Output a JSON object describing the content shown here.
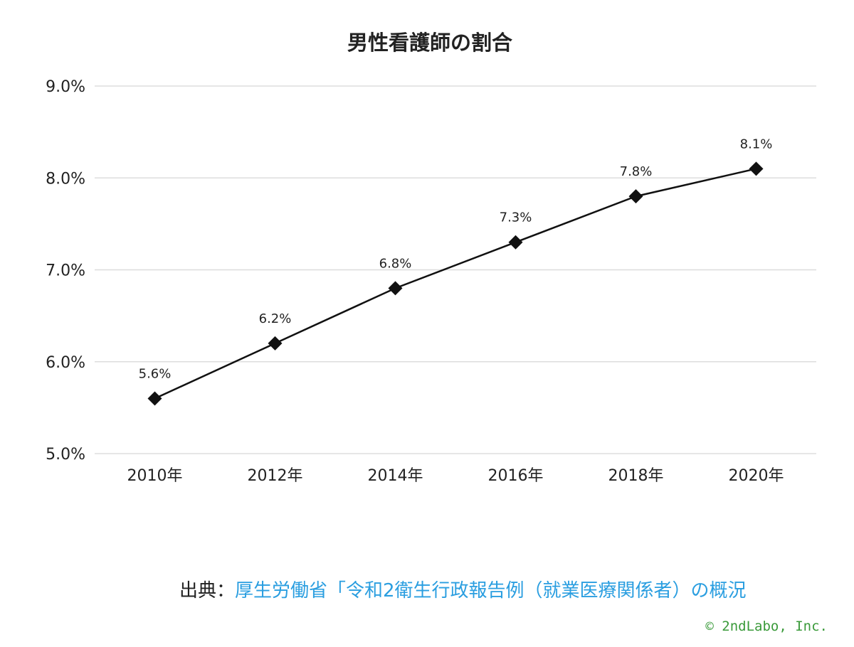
{
  "chart_data": {
    "type": "line",
    "title": "男性看護師の割合",
    "categories": [
      "2010年",
      "2012年",
      "2014年",
      "2016年",
      "2018年",
      "2020年"
    ],
    "series": [
      {
        "name": "男性看護師の割合",
        "color": "#111111",
        "values": [
          5.6,
          6.2,
          6.8,
          7.3,
          7.8,
          8.1
        ],
        "value_labels": [
          "5.6%",
          "6.2%",
          "6.8%",
          "7.3%",
          "7.8%",
          "8.1%"
        ]
      }
    ],
    "ylim": [
      5,
      9
    ],
    "yticks": [
      {
        "value": 5,
        "label": "5.0%"
      },
      {
        "value": 6,
        "label": "6.0%"
      },
      {
        "value": 7,
        "label": "7.0%"
      },
      {
        "value": 8,
        "label": "8.0%"
      },
      {
        "value": 9,
        "label": "9.0%"
      }
    ],
    "grid": true
  },
  "source": {
    "label": "出典：",
    "link": "厚生労働省「令和2衛生行政報告例（就業医療関係者）の概況"
  },
  "copyright": "© 2ndLabo, Inc."
}
